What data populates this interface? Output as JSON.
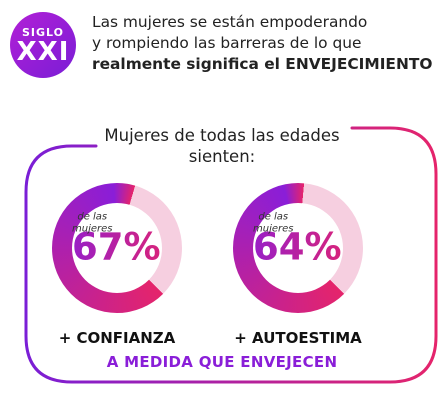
{
  "badge": {
    "line1": "SIGLO",
    "line2": "XXI"
  },
  "headline": {
    "line1": "Las mujeres se están empoderando",
    "line2": "y rompiendo las barreras de lo que",
    "line3": "realmente significa el ENVEJECIMIENTO"
  },
  "subtitle": {
    "line1": "Mujeres de todas las edades",
    "line2": "sienten:"
  },
  "stats": [
    {
      "percent": 67,
      "percent_text": "67%",
      "sub1": "de las",
      "sub2": "mujeres",
      "label": "+ CONFIANZA"
    },
    {
      "percent": 64,
      "percent_text": "64%",
      "sub1": "de las",
      "sub2": "mujeres",
      "label": "+ AUTOESTIMA"
    }
  ],
  "footer": "A MEDIDA QUE ENVEJECEN",
  "colors": {
    "purple": "#8a1ed8",
    "magenta": "#e5246b",
    "ring_remainder": "#f6cfe0",
    "frame_start": "#7a1ed6",
    "frame_end": "#e5246b"
  }
}
